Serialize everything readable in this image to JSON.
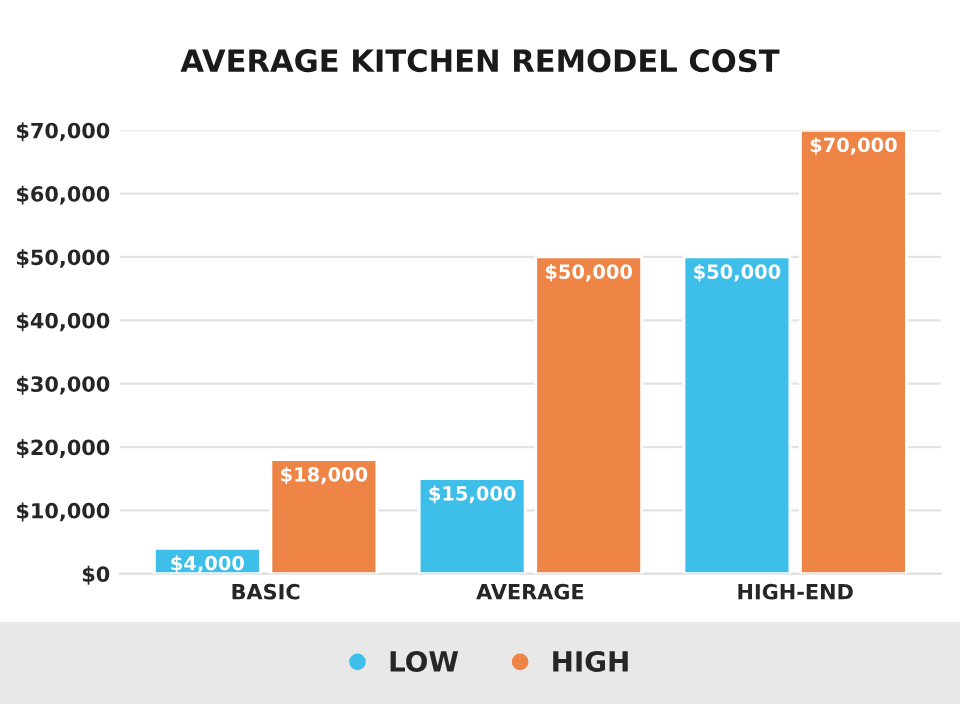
{
  "chart_data": {
    "type": "bar",
    "title": "AVERAGE KITCHEN REMODEL COST",
    "categories": [
      "BASIC",
      "AVERAGE",
      "HIGH-END"
    ],
    "series": [
      {
        "name": "LOW",
        "color": "#3dbfea",
        "values": [
          4000,
          15000,
          50000
        ],
        "value_labels": [
          "$4,000",
          "$15,000",
          "$50,000"
        ]
      },
      {
        "name": "HIGH",
        "color": "#ee8547",
        "values": [
          18000,
          50000,
          70000
        ],
        "value_labels": [
          "$18,000",
          "$50,000",
          "$70,000"
        ]
      }
    ],
    "ylim": [
      0,
      70000
    ],
    "yticks": [
      {
        "value": 0,
        "label": "$0"
      },
      {
        "value": 10000,
        "label": "$10,000"
      },
      {
        "value": 20000,
        "label": "$20,000"
      },
      {
        "value": 30000,
        "label": "$30,000"
      },
      {
        "value": 40000,
        "label": "$40,000"
      },
      {
        "value": 50000,
        "label": "$50,000"
      },
      {
        "value": 60000,
        "label": "$60,000"
      },
      {
        "value": 70000,
        "label": "$70,000"
      }
    ],
    "grid": "y",
    "legend": "bottom"
  }
}
